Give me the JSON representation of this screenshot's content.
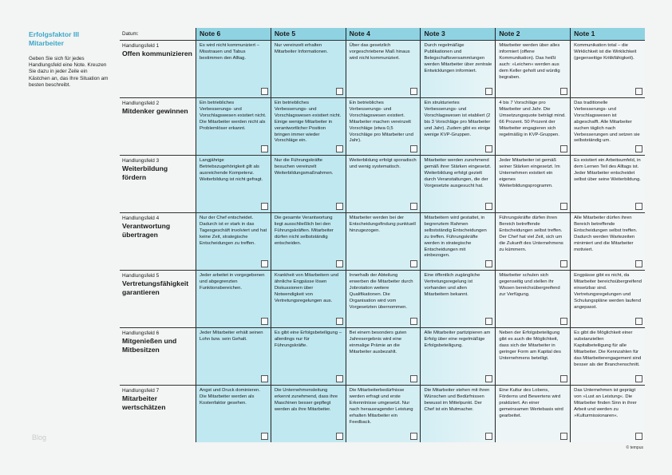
{
  "sidebar": {
    "title_line1": "Erfolgsfaktor III",
    "title_line2": "Mitarbeiter",
    "instructions": "Geben Sie sich für jedes Handlungsfeld eine Note. Kreuzen Sie dazu in jeder Zeile ein Kästchen an, das Ihre Situation am besten beschreibt."
  },
  "watermark": "Blog",
  "copyright": "© tempus",
  "colors": {
    "accent": "#3aa7c6",
    "header": "#8fd3e3",
    "cell_dark": "#c0e8f0",
    "cell_light": "#f2f6f6"
  },
  "table": {
    "date_label": "Datum:",
    "columns": [
      "Note 6",
      "Note 5",
      "Note 4",
      "Note 3",
      "Note 2",
      "Note 1"
    ],
    "rows": [
      {
        "field": "Handlungsfeld 1",
        "title": "Offen kommunizieren",
        "cells": [
          "Es wird nicht kommuniziert – Misstrauen und Tabus bestimmen den Alltag.",
          "Nur vereinzelt erhalten Mitarbeiter Informationen.",
          "Über das gesetzlich vorgeschriebene Maß hinaus wird nicht kommuniziert.",
          "Durch regelmäßige Publikationen und Belegschaftsversammlungen werden Mitarbeiter über zentrale Entwicklungen informiert.",
          "Mitarbeiter werden über alles informiert (offene Kommunikation). Das heißt auch: »Leichen« werden aus dem Keller geholt und würdig begraben.",
          "Kommunikation total – die Wirklichkeit ist die Wirklichkeit (gegenseitige Kritikfähigkeit)."
        ]
      },
      {
        "field": "Handlungsfeld 2",
        "title": "Mitdenker gewinnen",
        "cells": [
          "Ein betriebliches Verbesserungs- und Vorschlagswesen existiert nicht. Die Mitarbeiter werden nicht als Problemlöser erkannt.",
          "Ein betriebliches Verbesserungs- und Vorschlagswesen existiert nicht. Einige wenige Mitarbeiter in verantwortlicher Position bringen immer wieder Vorschläge ein.",
          "Ein betriebliches Verbesserungs- und Vorschlagswesen existiert. Mitarbeiter machen vereinzelt Vorschläge (etwa 0,5 Vorschläge pro Mitarbeiter und Jahr).",
          "Ein strukturiertes Verbesserungs- und Vorschlagswesen ist etabliert (2 bis 3 Vorschläge pro Mitarbeiter und Jahr). Zudem gibt es einige wenige KVP-Gruppen.",
          "4 bis 7 Vorschläge pro Mitarbeiter und Jahr. Die Umsetzungsquote beträgt mind. 66 Prozent. 50 Prozent der Mitarbeiter engagieren sich regelmäßig in KVP-Gruppen.",
          "Das traditionelle Verbesserungs- und Vorschlagswesen ist abgeschafft. Alle Mitarbeiter suchen täglich nach Verbesserungen und setzen sie selbstständig um."
        ]
      },
      {
        "field": "Handlungsfeld 3",
        "title": "Weiterbildung fördern",
        "cells": [
          "Langjährige Betriebszugehörigkeit gilt als ausreichende Kompetenz. Weiterbildung ist nicht gefragt.",
          "Nur die Führungskräfte besuchen vereinzelt Weiterbildungsmaßnahmen.",
          "Weiterbildung erfolgt sporadisch und wenig systematisch.",
          "Mitarbeiter werden zunehmend gemäß ihrer Stärken eingesetzt. Weiterbildung erfolgt gezielt durch Veranstaltungen, die der Vorgesetzte ausgesucht hat.",
          "Jeder Mitarbeiter ist gemäß seiner Stärken eingesetzt. Im Unternehmen existiert ein eigenes Weiterbildungsprogramm.",
          "Es existiert ein Arbeitsumfeld, in dem Lernen Teil des Alltags ist. Jeder Mitarbeiter entscheidet selbst über seine Weiterbildung."
        ]
      },
      {
        "field": "Handlungsfeld 4",
        "title": "Verantwortung übertragen",
        "cells": [
          "Nur der Chef entscheidet. Dadurch ist er stark in das Tagesgeschäft involviert und hat keine Zeit, strategische Entscheidungen zu treffen.",
          "Die gesamte Verantwortung liegt ausschließlich bei den Führungskräften. Mitarbeiter dürfen nicht selbstständig entscheiden.",
          "Mitarbeiter werden bei der Entscheidungsfindung punktuell hinzugezogen.",
          "Mitarbeitern wird gestattet, in begrenztem Rahmen selbstständig Entscheidungen zu treffen. Führungskräfte werden in strategische Entscheidungen mit einbezogen.",
          "Führungskräfte dürfen ihren Bereich betreffende Entscheidungen selbst treffen. Der Chef hat viel Zeit, sich um die Zukunft des Unternehmens zu kümmern.",
          "Alle Mitarbeiter dürfen ihren Bereich betreffende Entscheidungen selbst treffen. Dadurch werden Wartezeiten minimiert und die Mitarbeiter motiviert."
        ]
      },
      {
        "field": "Handlungsfeld 5",
        "title": "Vertretungs­fähigkeit garantieren",
        "cells": [
          "Jeder arbeitet in vorgegebenen und abgegrenzten Funktionsbereichen.",
          "Krankheit von Mitarbeitern und ähnliche Engpässe lösen Diskussionen über Notwendigkeit von Vertretungsregelungen aus.",
          "Innerhalb der Abteilung erwerben die Mitarbeiter durch Jobrotation weitere Qualifikationen. Die Organisation wird vom Vorgesetzten übernommen.",
          "Eine öffentlich zugängliche Vertretungsregelung ist vorhanden und allen Mitarbeitern bekannt.",
          "Mitarbeiter schulen sich gegenseitig und stellen ihr Wissen bereichsübergreifend zur Verfügung.",
          "Engpässe gibt es nicht, da Mitarbeiter bereichsübergreifend einsetzbar sind. Vertretungsregelungen und Schulungspläne werden laufend angepasst."
        ]
      },
      {
        "field": "Handlungsfeld 6",
        "title": "Mitgenießen und Mitbesitzen",
        "cells": [
          "Jeder Mitarbeiter erhält seinen Lohn bzw. sein Gehalt.",
          "Es gibt eine Erfolgsbeteiligung – allerdings nur für Führungskräfte.",
          "Bei einem besonders guten Jahresergebnis wird eine einmalige Prämie an die Mitarbeiter ausbezahlt.",
          "Alle Mitarbeiter partizipieren am Erfolg über eine regelmäßige Erfolgsbeteiligung.",
          "Neben der Erfolgsbeteiligung gibt es auch die Möglichkeit, dass sich der Mitarbeiter in geringer Form am Kapital des Unternehmens beteiligt.",
          "Es gibt die Möglichkeit einer substanziellen Kapitalbeteiligung für alle Mitarbeiter. Die Kennzahlen für das Mitarbeiterengagement sind besser als der Branchenschnitt."
        ]
      },
      {
        "field": "Handlungsfeld 7",
        "title": "Mitarbeiter wertschätzen",
        "cells": [
          "Angst und Druck dominieren. Die Mitarbeiter werden als Kostenfaktor gesehen.",
          "Die Unternehmensleitung erkennt zunehmend, dass ihre Maschinen besser gepflegt werden als ihre Mitarbeiter.",
          "Die Mitarbeiterbedürfnisse werden erfragt und erste Erkenntnisse umgesetzt. Nur nach herausragender Leistung erhalten Mitarbeiter ein Feedback.",
          "Die Mitarbeiter stehen mit ihren Wünschen und Bedürfnissen bewusst im Mittelpunkt. Der Chef ist ein Mutmacher.",
          "Eine Kultur des Lobens, Förderns und Bewertens wird praktiziert. An einer gemeinsamen Wertebasis wird gearbeitet.",
          "Das Unternehmen ist geprägt von »Lust an Leistung«. Die Mitarbeiter finden Sinn in ihrer Arbeit und werden zu »Kulturmissionaren«."
        ]
      }
    ]
  }
}
